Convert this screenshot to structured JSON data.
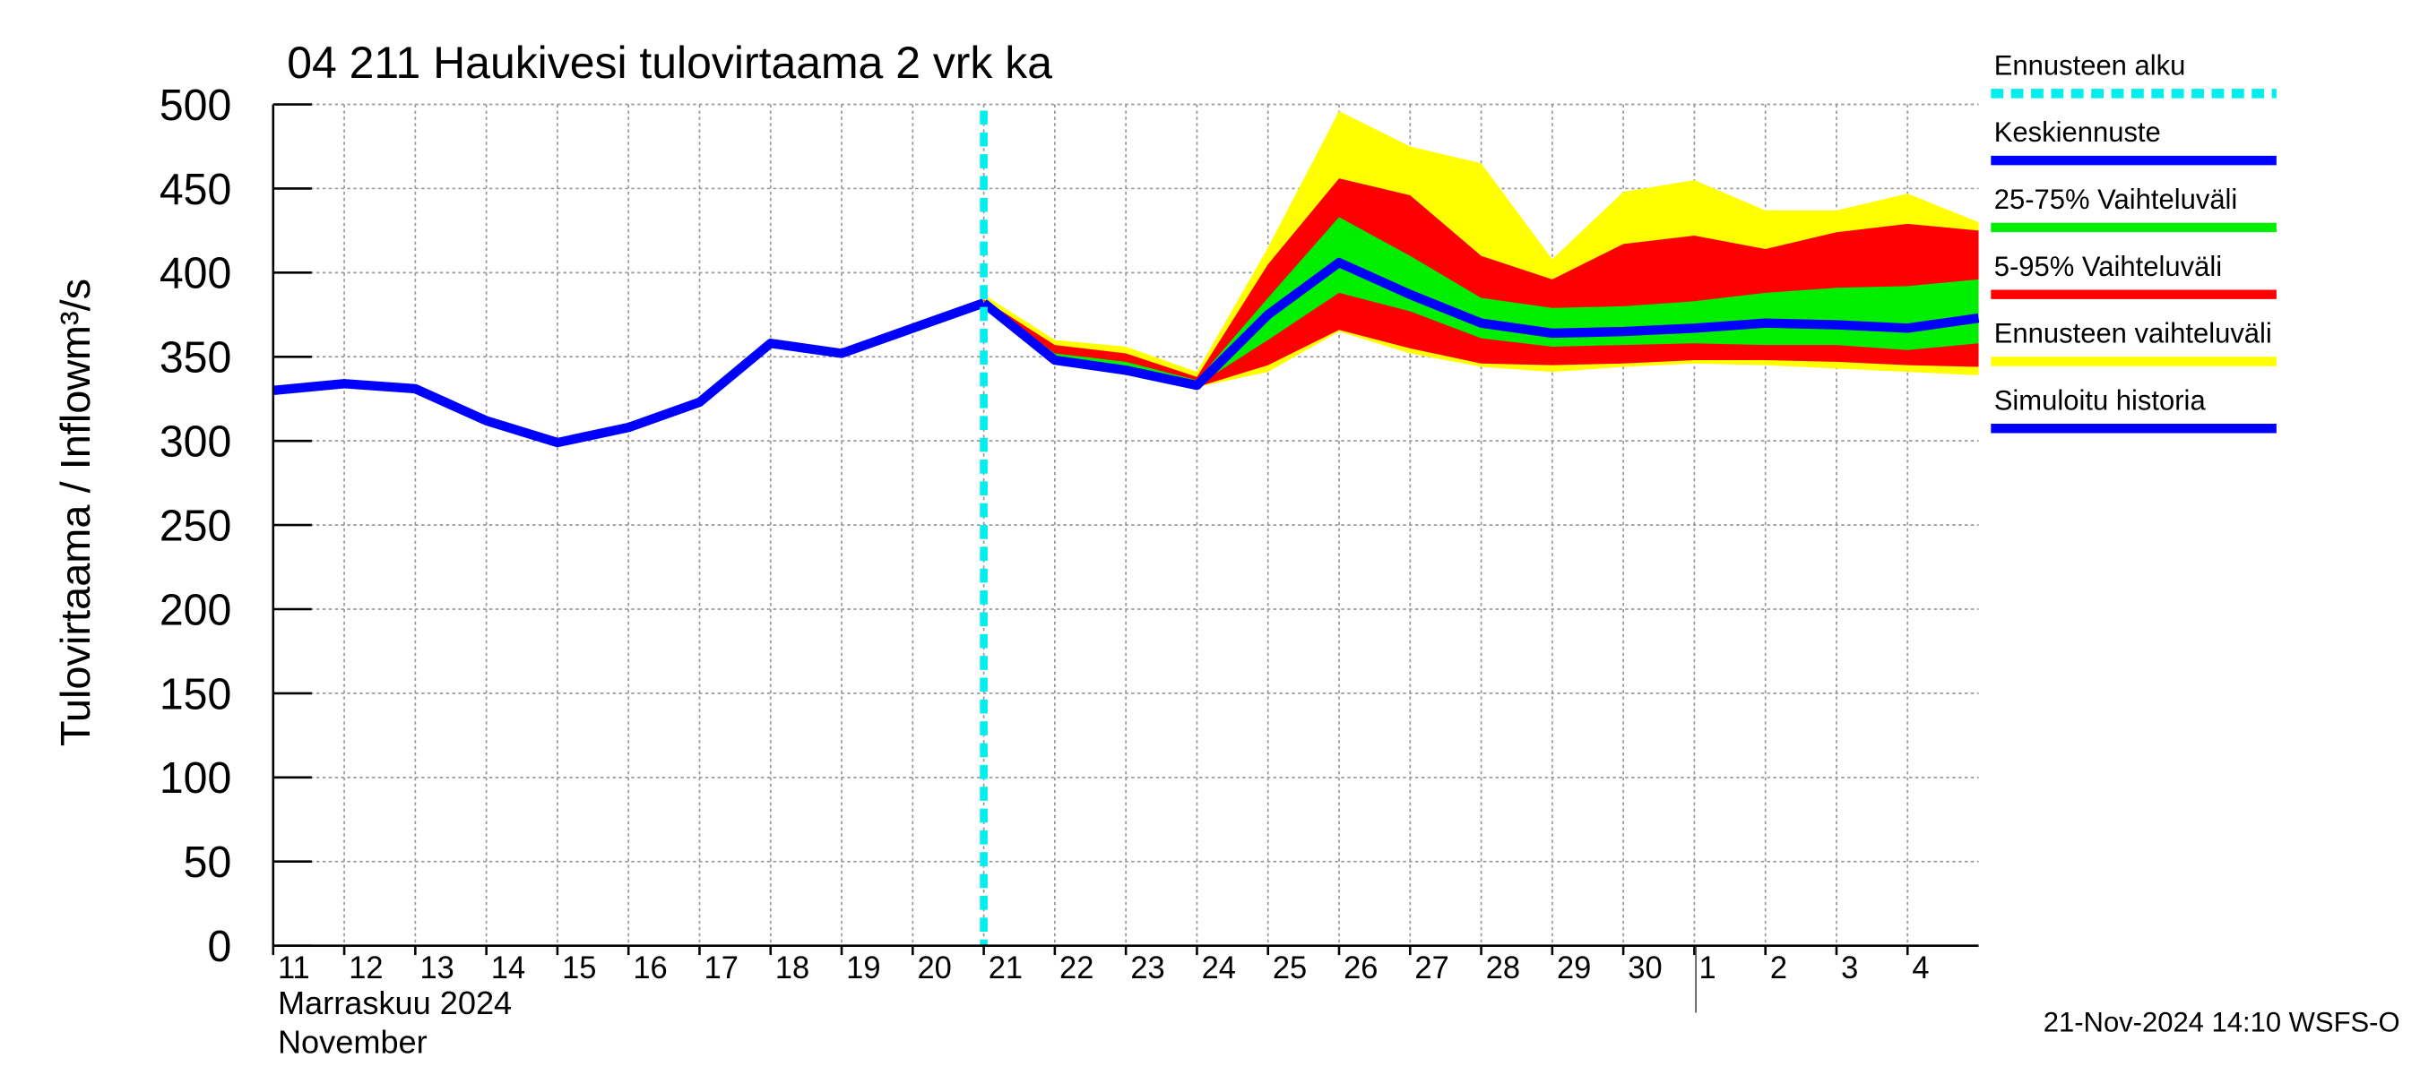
{
  "chart_data": {
    "type": "band-line",
    "title": "04 211 Haukivesi tulovirtaama 2 vrk ka",
    "y_label": "Tulovirtaama / Inflow",
    "y_unit": "m³/s",
    "x_label_fi": "Marraskuu 2024",
    "x_label_en": "November",
    "footer": "21-Nov-2024 14:10 WSFS-O",
    "xlim": [
      0,
      24
    ],
    "ylim": [
      0,
      500
    ],
    "yticks": [
      0,
      50,
      100,
      150,
      200,
      250,
      300,
      350,
      400,
      450,
      500
    ],
    "xticks": [
      {
        "value": 0,
        "label": "11"
      },
      {
        "value": 1,
        "label": "12"
      },
      {
        "value": 2,
        "label": "13"
      },
      {
        "value": 3,
        "label": "14"
      },
      {
        "value": 4,
        "label": "15"
      },
      {
        "value": 5,
        "label": "16"
      },
      {
        "value": 6,
        "label": "17"
      },
      {
        "value": 7,
        "label": "18"
      },
      {
        "value": 8,
        "label": "19"
      },
      {
        "value": 9,
        "label": "20"
      },
      {
        "value": 10,
        "label": "21"
      },
      {
        "value": 11,
        "label": "22"
      },
      {
        "value": 12,
        "label": "23"
      },
      {
        "value": 13,
        "label": "24"
      },
      {
        "value": 14,
        "label": "25"
      },
      {
        "value": 15,
        "label": "26"
      },
      {
        "value": 16,
        "label": "27"
      },
      {
        "value": 17,
        "label": "28"
      },
      {
        "value": 18,
        "label": "29"
      },
      {
        "value": 19,
        "label": "30"
      },
      {
        "value": 20,
        "label": "1"
      },
      {
        "value": 21,
        "label": "2"
      },
      {
        "value": 22,
        "label": "3"
      },
      {
        "value": 23,
        "label": "4"
      }
    ],
    "grid": true,
    "forecast_start": {
      "name": "Ennusteen alku",
      "x": 10,
      "color": "#00eeee"
    },
    "series": [
      {
        "name": "Ennusteen vaihteluväli",
        "kind": "band",
        "color": "#ffff00",
        "x": [
          10,
          11,
          12,
          13,
          14,
          15,
          16,
          17,
          18,
          19,
          20,
          21,
          22,
          23,
          24
        ],
        "high": [
          387,
          360,
          356,
          341,
          415,
          496,
          475,
          465,
          408,
          448,
          455,
          437,
          437,
          447,
          430
        ],
        "low": [
          382,
          346,
          340,
          332,
          341,
          365,
          352,
          344,
          341,
          344,
          346,
          345,
          343,
          341,
          339
        ]
      },
      {
        "name": "5-95% Vaihteluväli",
        "kind": "band",
        "color": "#ff0000",
        "x": [
          10,
          11,
          12,
          13,
          14,
          15,
          16,
          17,
          18,
          19,
          20,
          21,
          22,
          23,
          24
        ],
        "high": [
          384,
          357,
          352,
          338,
          405,
          456,
          446,
          410,
          396,
          417,
          422,
          414,
          424,
          429,
          425
        ],
        "low": [
          382,
          346,
          341,
          332,
          345,
          366,
          355,
          346,
          345,
          346,
          348,
          348,
          347,
          345,
          344
        ]
      },
      {
        "name": "25-75% Vaihteluväli",
        "kind": "band",
        "color": "#00ee00",
        "x": [
          10,
          11,
          12,
          13,
          14,
          15,
          16,
          17,
          18,
          19,
          20,
          21,
          22,
          23,
          24
        ],
        "high": [
          383,
          352,
          347,
          336,
          385,
          433,
          410,
          385,
          379,
          380,
          383,
          388,
          391,
          392,
          396
        ],
        "low": [
          382,
          349,
          344,
          333,
          360,
          388,
          377,
          361,
          356,
          357,
          358,
          357,
          357,
          354,
          358
        ]
      },
      {
        "name": "Simuloitu historia",
        "kind": "line",
        "color": "#0000ff",
        "x": [
          0,
          1,
          2,
          3,
          4,
          5,
          6,
          7,
          8,
          9,
          10
        ],
        "values": [
          330,
          334,
          331,
          312,
          299,
          308,
          323,
          358,
          352,
          367,
          382
        ]
      },
      {
        "name": "Keskiennuste",
        "kind": "line",
        "color": "#0000ff",
        "x": [
          10,
          11,
          12,
          13,
          14,
          15,
          16,
          17,
          18,
          19,
          20,
          21,
          22,
          23,
          24
        ],
        "values": [
          382,
          348,
          342,
          333,
          375,
          406,
          387,
          370,
          364,
          365,
          367,
          370,
          369,
          367,
          373
        ]
      }
    ],
    "legend_order": [
      "forecast_start",
      4,
      2,
      1,
      0,
      3
    ]
  }
}
